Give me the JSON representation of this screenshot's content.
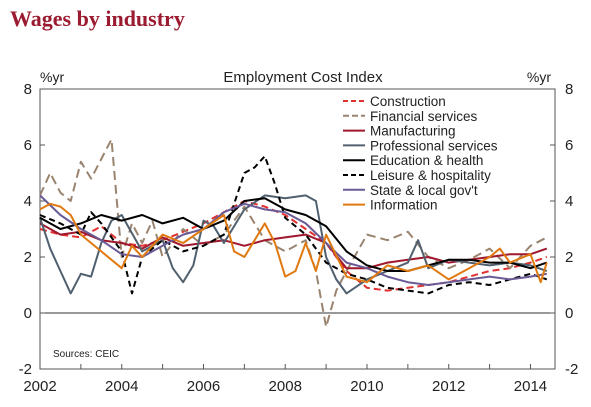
{
  "page_title": "Wages by industry",
  "chart_data": {
    "type": "line",
    "subtitle": "Employment Cost Index",
    "ylabel_left": "%yr",
    "ylabel_right": "%yr",
    "ylim": [
      -2,
      8
    ],
    "xlim": [
      2002,
      2014.6
    ],
    "yticks": [
      "-2",
      "0",
      "2",
      "4",
      "6",
      "8"
    ],
    "xticks": [
      "2002",
      "2004",
      "2006",
      "2008",
      "2010",
      "2012",
      "2014"
    ],
    "source": "Sources: CEIC",
    "legend_position": "top-right",
    "series": [
      {
        "name": "Construction",
        "color": "#e03030",
        "dash": "7,4",
        "x": [
          2002.0,
          2002.5,
          2003.0,
          2003.5,
          2004.0,
          2004.5,
          2005.0,
          2005.5,
          2006.0,
          2006.5,
          2007.0,
          2007.5,
          2008.0,
          2008.5,
          2009.0,
          2009.5,
          2010.0,
          2010.5,
          2011.0,
          2011.5,
          2012.0,
          2012.5,
          2013.0,
          2013.5,
          2014.0,
          2014.4
        ],
        "y": [
          3.0,
          2.8,
          2.7,
          3.1,
          2.5,
          2.4,
          2.6,
          2.9,
          3.2,
          3.6,
          4.0,
          3.8,
          3.5,
          3.0,
          2.5,
          1.5,
          0.9,
          0.8,
          0.9,
          1.0,
          1.1,
          1.3,
          1.5,
          1.6,
          1.8,
          2.0
        ]
      },
      {
        "name": "Financial services",
        "color": "#9a8470",
        "dash": "9,5",
        "x": [
          2002.0,
          2002.25,
          2002.5,
          2002.75,
          2003.0,
          2003.25,
          2003.5,
          2003.75,
          2004.0,
          2004.25,
          2004.5,
          2004.75,
          2005.0,
          2005.5,
          2006.0,
          2006.5,
          2007.0,
          2007.5,
          2008.0,
          2008.5,
          2008.75,
          2009.0,
          2009.25,
          2009.5,
          2010.0,
          2010.5,
          2011.0,
          2011.5,
          2012.0,
          2012.5,
          2013.0,
          2013.5,
          2014.0,
          2014.4
        ],
        "y": [
          4.2,
          5.0,
          4.3,
          4.0,
          5.4,
          4.8,
          5.5,
          6.2,
          2.0,
          3.2,
          2.5,
          3.3,
          2.0,
          3.0,
          2.4,
          2.8,
          3.8,
          2.6,
          2.2,
          2.6,
          1.5,
          -0.5,
          0.8,
          1.5,
          2.8,
          2.6,
          2.9,
          2.0,
          1.6,
          1.9,
          2.3,
          1.6,
          2.4,
          2.7
        ]
      },
      {
        "name": "Manufacturing",
        "color": "#a0182c",
        "dash": "",
        "x": [
          2002.0,
          2002.5,
          2003.0,
          2003.5,
          2004.0,
          2004.5,
          2005.0,
          2005.5,
          2006.0,
          2006.5,
          2007.0,
          2007.5,
          2008.0,
          2008.5,
          2009.0,
          2009.5,
          2010.0,
          2010.5,
          2011.0,
          2011.5,
          2012.0,
          2012.5,
          2013.0,
          2013.5,
          2014.0,
          2014.4
        ],
        "y": [
          3.2,
          2.8,
          2.9,
          2.6,
          2.5,
          2.3,
          2.7,
          2.4,
          2.5,
          2.6,
          2.4,
          2.6,
          2.7,
          2.8,
          2.5,
          1.6,
          1.6,
          1.8,
          1.9,
          2.0,
          1.8,
          1.9,
          2.0,
          2.1,
          2.1,
          2.3
        ]
      },
      {
        "name": "Professional services",
        "color": "#50606e",
        "dash": "",
        "x": [
          2002.0,
          2002.25,
          2002.5,
          2002.75,
          2003.0,
          2003.25,
          2003.5,
          2003.75,
          2004.0,
          2004.5,
          2005.0,
          2005.25,
          2005.5,
          2005.75,
          2006.0,
          2006.25,
          2006.5,
          2007.0,
          2007.5,
          2008.0,
          2008.5,
          2008.75,
          2009.0,
          2009.25,
          2009.5,
          2010.0,
          2010.5,
          2011.0,
          2011.25,
          2011.5,
          2012.0,
          2012.5,
          2013.0,
          2013.5,
          2014.0,
          2014.4
        ],
        "y": [
          3.4,
          2.3,
          1.5,
          0.7,
          1.4,
          1.3,
          2.5,
          3.3,
          3.5,
          2.2,
          2.6,
          1.6,
          1.1,
          1.7,
          3.3,
          3.1,
          2.5,
          3.7,
          4.2,
          4.1,
          4.2,
          4.0,
          2.0,
          1.2,
          0.7,
          1.2,
          1.5,
          1.8,
          2.6,
          1.6,
          1.9,
          1.8,
          1.7,
          1.8,
          1.7,
          1.5
        ]
      },
      {
        "name": "Education & health",
        "color": "#000000",
        "dash": "",
        "x": [
          2002.0,
          2002.5,
          2003.0,
          2003.5,
          2004.0,
          2004.5,
          2005.0,
          2005.5,
          2006.0,
          2006.5,
          2007.0,
          2007.5,
          2008.0,
          2008.5,
          2009.0,
          2009.5,
          2010.0,
          2010.5,
          2011.0,
          2011.5,
          2012.0,
          2012.5,
          2013.0,
          2013.5,
          2014.0,
          2014.4
        ],
        "y": [
          3.4,
          3.0,
          3.2,
          3.5,
          3.3,
          3.5,
          3.2,
          3.4,
          3.0,
          3.3,
          4.0,
          4.1,
          3.7,
          3.5,
          3.1,
          2.2,
          1.7,
          1.5,
          1.5,
          1.7,
          1.9,
          1.9,
          1.8,
          1.8,
          1.6,
          1.8
        ]
      },
      {
        "name": "Leisure & hospitality",
        "color": "#000000",
        "dash": "6,4",
        "x": [
          2002.0,
          2002.5,
          2003.0,
          2003.25,
          2003.5,
          2004.0,
          2004.25,
          2004.5,
          2005.0,
          2005.5,
          2006.0,
          2006.5,
          2007.0,
          2007.25,
          2007.5,
          2007.75,
          2008.0,
          2008.5,
          2009.0,
          2009.5,
          2010.0,
          2010.5,
          2011.0,
          2011.5,
          2012.0,
          2012.5,
          2013.0,
          2013.5,
          2014.0,
          2014.4
        ],
        "y": [
          3.5,
          3.2,
          2.8,
          3.6,
          3.2,
          2.2,
          0.7,
          2.0,
          2.6,
          2.2,
          2.4,
          2.8,
          5.0,
          5.2,
          5.6,
          4.6,
          3.4,
          2.8,
          1.8,
          1.4,
          1.2,
          0.9,
          0.8,
          0.7,
          1.0,
          1.1,
          1.0,
          1.2,
          1.4,
          1.2
        ]
      },
      {
        "name": "State & local gov't",
        "color": "#6a5a96",
        "dash": "",
        "x": [
          2002.0,
          2002.5,
          2003.0,
          2003.5,
          2004.0,
          2004.5,
          2005.0,
          2005.5,
          2006.0,
          2006.5,
          2007.0,
          2007.5,
          2008.0,
          2008.5,
          2009.0,
          2009.5,
          2010.0,
          2010.5,
          2011.0,
          2011.5,
          2012.0,
          2012.5,
          2013.0,
          2013.5,
          2014.0,
          2014.4
        ],
        "y": [
          4.2,
          3.5,
          3.0,
          2.6,
          2.1,
          2.0,
          2.4,
          2.8,
          3.0,
          3.6,
          3.9,
          3.7,
          3.6,
          3.2,
          2.5,
          1.8,
          1.6,
          1.3,
          1.1,
          1.0,
          1.1,
          1.2,
          1.3,
          1.2,
          1.3,
          1.4
        ]
      },
      {
        "name": "Information",
        "color": "#e07a10",
        "dash": "",
        "x": [
          2002.0,
          2002.25,
          2002.5,
          2002.75,
          2003.0,
          2003.5,
          2004.0,
          2004.25,
          2004.5,
          2005.0,
          2005.5,
          2006.0,
          2006.5,
          2006.75,
          2007.0,
          2007.5,
          2007.75,
          2008.0,
          2008.25,
          2008.5,
          2008.75,
          2009.0,
          2009.5,
          2010.0,
          2010.5,
          2011.0,
          2011.5,
          2012.0,
          2012.5,
          2013.0,
          2013.25,
          2013.5,
          2014.0,
          2014.25,
          2014.4
        ],
        "y": [
          3.7,
          3.9,
          3.8,
          3.5,
          2.8,
          2.2,
          1.6,
          2.4,
          2.0,
          2.8,
          2.5,
          3.0,
          3.5,
          2.2,
          2.0,
          3.2,
          2.5,
          1.3,
          1.5,
          2.5,
          1.5,
          2.8,
          1.3,
          1.1,
          1.7,
          1.5,
          1.7,
          1.2,
          1.6,
          2.0,
          2.3,
          1.8,
          2.1,
          1.1,
          1.8
        ]
      }
    ]
  }
}
